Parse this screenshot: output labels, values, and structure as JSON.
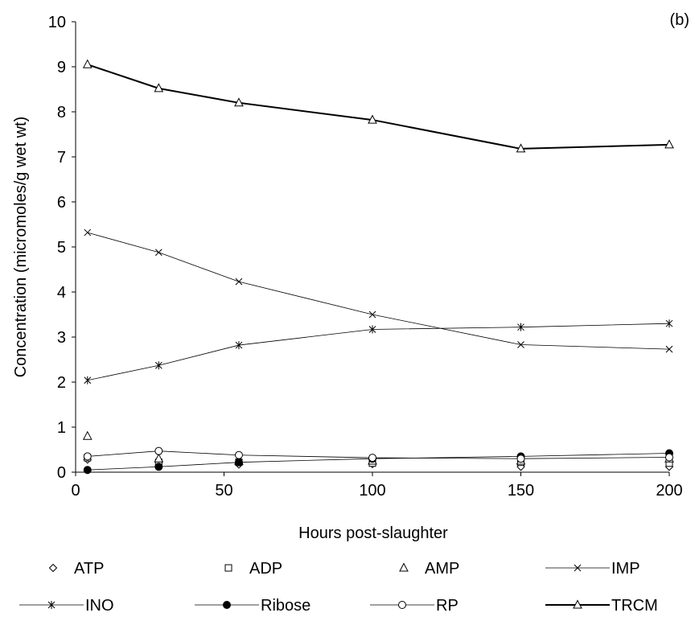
{
  "chart_data": {
    "type": "line",
    "panel_label": "(b)",
    "xlabel": "Hours post-slaughter",
    "ylabel": "Concentration (micromoles/g wet wt)",
    "xlim": [
      0,
      200
    ],
    "ylim": [
      0,
      10
    ],
    "xticks": [
      0,
      50,
      100,
      150,
      200
    ],
    "yticks": [
      0,
      1,
      2,
      3,
      4,
      5,
      6,
      7,
      8,
      9,
      10
    ],
    "grid": false,
    "legend_position": "bottom",
    "series": [
      {
        "name": "ATP",
        "marker": "diamond",
        "line": "none",
        "x": [
          4,
          28,
          55,
          100,
          150,
          200
        ],
        "y": [
          0.28,
          0.25,
          0.17,
          0.18,
          0.12,
          0.12
        ]
      },
      {
        "name": "ADP",
        "marker": "square",
        "line": "none",
        "x": [
          4,
          28,
          55,
          100,
          150,
          200
        ],
        "y": [
          0.32,
          0.22,
          0.22,
          0.2,
          0.22,
          0.2
        ]
      },
      {
        "name": "AMP",
        "marker": "triangle",
        "line": "none",
        "x": [
          4,
          28,
          55,
          100,
          150,
          200
        ],
        "y": [
          0.8,
          0.3,
          0.25,
          0.25,
          0.25,
          0.3
        ]
      },
      {
        "name": "IMP",
        "marker": "x",
        "line": "thin",
        "x": [
          4,
          28,
          55,
          100,
          150,
          200
        ],
        "y": [
          5.32,
          4.88,
          4.23,
          3.5,
          2.83,
          2.73
        ]
      },
      {
        "name": "INO",
        "marker": "star",
        "line": "thin",
        "x": [
          4,
          28,
          55,
          100,
          150,
          200
        ],
        "y": [
          2.04,
          2.37,
          2.82,
          3.17,
          3.22,
          3.3
        ]
      },
      {
        "name": "Ribose",
        "marker": "filled-circle",
        "line": "thin",
        "x": [
          4,
          28,
          55,
          100,
          150,
          200
        ],
        "y": [
          0.05,
          0.12,
          0.22,
          0.3,
          0.35,
          0.42
        ]
      },
      {
        "name": "RP",
        "marker": "open-circle",
        "line": "thin",
        "x": [
          4,
          28,
          55,
          100,
          150,
          200
        ],
        "y": [
          0.35,
          0.47,
          0.38,
          0.32,
          0.3,
          0.33
        ]
      },
      {
        "name": "TRCM",
        "marker": "triangle",
        "line": "thick",
        "x": [
          4,
          28,
          55,
          100,
          150,
          200
        ],
        "y": [
          9.05,
          8.52,
          8.2,
          7.82,
          7.18,
          7.27
        ]
      }
    ]
  }
}
